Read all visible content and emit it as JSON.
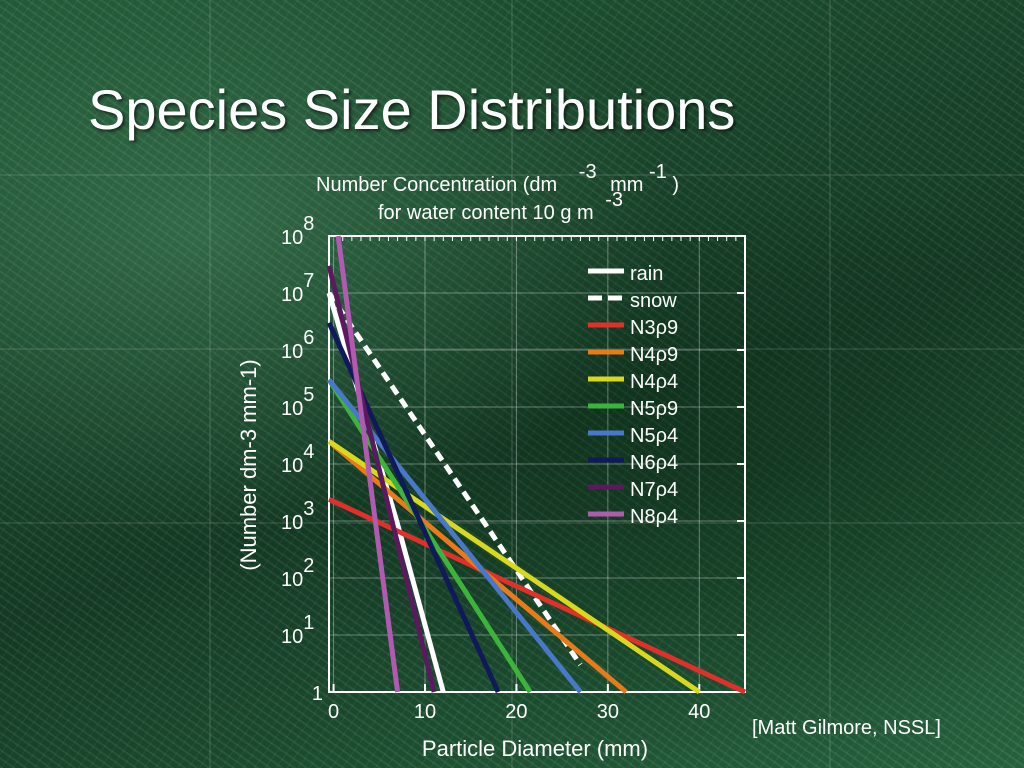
{
  "slide": {
    "title": "Species Size Distributions",
    "credit": "[Matt Gilmore, NSSL]"
  },
  "chart_data": {
    "type": "line",
    "y_scale": "log",
    "title_line1": "Number Concentration (dm",
    "title_exp1": "-3",
    "title_mid": "mm",
    "title_exp2": "-1",
    "title_end": ")",
    "title_line2": "for water content 10 g m",
    "title_line2_exp": "-3",
    "xlabel": "Particle Diameter (mm)",
    "ylabel": "(Number dm-3 mm-1)",
    "xlim": [
      -0.5,
      45
    ],
    "ylim": [
      1,
      100000000
    ],
    "xticks": [
      0,
      10,
      20,
      30,
      40
    ],
    "yticks": [
      {
        "base": "",
        "exp": "",
        "label": "1",
        "value": 1
      },
      {
        "base": "10",
        "exp": "1",
        "value": 10
      },
      {
        "base": "10",
        "exp": "2",
        "value": 100
      },
      {
        "base": "10",
        "exp": "3",
        "value": 1000
      },
      {
        "base": "10",
        "exp": "4",
        "value": 10000
      },
      {
        "base": "10",
        "exp": "5",
        "value": 100000
      },
      {
        "base": "10",
        "exp": "6",
        "value": 1000000
      },
      {
        "base": "10",
        "exp": "7",
        "value": 10000000
      },
      {
        "base": "10",
        "exp": "8",
        "value": 100000000
      }
    ],
    "legend_placement": "top-right",
    "series": [
      {
        "name": "rain",
        "color": "#ffffff",
        "style": "solid",
        "x": [
          -0.5,
          6.9,
          12
        ],
        "y": [
          10000000,
          1000,
          1
        ]
      },
      {
        "name": "snow",
        "color": "#ffffff",
        "style": "dashed",
        "x": [
          -0.5,
          27
        ],
        "y": [
          10000000,
          3
        ]
      },
      {
        "name": "N3",
        "sub": "ρ9",
        "color": "#e0302a",
        "style": "solid",
        "x": [
          -0.5,
          45
        ],
        "y": [
          2400,
          1
        ]
      },
      {
        "name": "N4",
        "sub": "ρ9",
        "color": "#e87a1a",
        "style": "solid",
        "x": [
          -0.5,
          32
        ],
        "y": [
          25000,
          1
        ]
      },
      {
        "name": "N4",
        "sub": "ρ4",
        "color": "#d8d81e",
        "style": "solid",
        "x": [
          -0.5,
          40
        ],
        "y": [
          25000,
          1
        ]
      },
      {
        "name": "N5",
        "sub": "ρ9",
        "color": "#3cb43c",
        "style": "solid",
        "x": [
          -0.5,
          21.5
        ],
        "y": [
          300000,
          1
        ]
      },
      {
        "name": "N5",
        "sub": "ρ4",
        "color": "#4a78c8",
        "style": "solid",
        "x": [
          -0.5,
          27
        ],
        "y": [
          300000,
          1
        ]
      },
      {
        "name": "N6",
        "sub": "ρ4",
        "color": "#101a5a",
        "style": "solid",
        "x": [
          -0.5,
          18
        ],
        "y": [
          3000000,
          1
        ]
      },
      {
        "name": "N7",
        "sub": "ρ4",
        "color": "#5a1a5e",
        "style": "solid",
        "x": [
          -0.5,
          11
        ],
        "y": [
          30000000,
          1
        ]
      },
      {
        "name": "N8",
        "sub": "ρ4",
        "color": "#b05ab0",
        "style": "solid",
        "x": [
          0.5,
          7
        ],
        "y": [
          100000000,
          1
        ]
      }
    ]
  }
}
